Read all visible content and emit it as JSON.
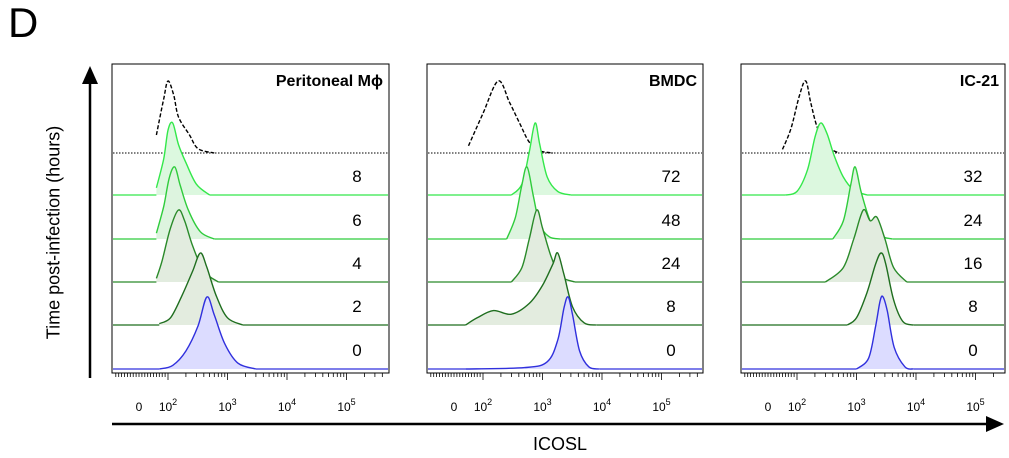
{
  "figure": {
    "panel_label": "D",
    "ylabel": "Time post-infection (hours)",
    "xlabel": "ICOSL"
  },
  "chart_data": [
    {
      "type": "area",
      "title": "Peritoneal Mϕ",
      "xscale": "biexponential",
      "xticks": [
        "0",
        "10^2",
        "10^3",
        "10^4",
        "10^5"
      ],
      "ridges": [
        {
          "time": "",
          "style": "isotype-control",
          "color": "#000000",
          "peak": 100,
          "points": [
            [
              60,
              0.25
            ],
            [
              85,
              0.75
            ],
            [
              100,
              1.0
            ],
            [
              125,
              0.8
            ],
            [
              150,
              0.5
            ],
            [
              230,
              0.25
            ],
            [
              320,
              0.06
            ],
            [
              600,
              0.0
            ]
          ]
        },
        {
          "time": "8",
          "color": "#33e84a",
          "fill": "#dcf8df",
          "peak": 130,
          "points": [
            [
              60,
              0.1
            ],
            [
              85,
              0.5
            ],
            [
              100,
              0.9
            ],
            [
              120,
              1.0
            ],
            [
              150,
              0.7
            ],
            [
              200,
              0.45
            ],
            [
              300,
              0.15
            ],
            [
              500,
              0.0
            ]
          ]
        },
        {
          "time": "6",
          "color": "#2fcc3c",
          "fill": "#ddf4df",
          "peak": 130,
          "points": [
            [
              60,
              0.08
            ],
            [
              85,
              0.45
            ],
            [
              105,
              0.85
            ],
            [
              130,
              1.0
            ],
            [
              160,
              0.75
            ],
            [
              220,
              0.4
            ],
            [
              350,
              0.1
            ],
            [
              600,
              0.0
            ]
          ]
        },
        {
          "time": "4",
          "color": "#2a8a2a",
          "fill": "#e2ecdf",
          "peak": 150,
          "points": [
            [
              60,
              0.05
            ],
            [
              80,
              0.3
            ],
            [
              110,
              0.75
            ],
            [
              150,
              1.0
            ],
            [
              190,
              0.85
            ],
            [
              260,
              0.5
            ],
            [
              400,
              0.15
            ],
            [
              700,
              0.0
            ]
          ]
        },
        {
          "time": "2",
          "color": "#1f6e1f",
          "fill": "#e3ecdf",
          "peak": 350,
          "points": [
            [
              70,
              0.02
            ],
            [
              110,
              0.1
            ],
            [
              170,
              0.4
            ],
            [
              260,
              0.75
            ],
            [
              350,
              1.0
            ],
            [
              450,
              0.8
            ],
            [
              650,
              0.4
            ],
            [
              1000,
              0.1
            ],
            [
              1800,
              0.0
            ]
          ]
        },
        {
          "time": "0",
          "color": "#3030dd",
          "fill": "#dcdcff",
          "peak": 450,
          "points": [
            [
              70,
              0.0
            ],
            [
              120,
              0.05
            ],
            [
              200,
              0.25
            ],
            [
              320,
              0.6
            ],
            [
              450,
              1.0
            ],
            [
              600,
              0.75
            ],
            [
              900,
              0.35
            ],
            [
              1500,
              0.08
            ],
            [
              3000,
              0.0
            ]
          ]
        }
      ]
    },
    {
      "type": "area",
      "title": "BMDC",
      "xscale": "biexponential",
      "xticks": [
        "0",
        "10^2",
        "10^3",
        "10^4",
        "10^5"
      ],
      "ridges": [
        {
          "time": "",
          "style": "isotype-control",
          "color": "#000000",
          "peak": 180,
          "points": [
            [
              50,
              0.1
            ],
            [
              100,
              0.55
            ],
            [
              180,
              1.0
            ],
            [
              280,
              0.7
            ],
            [
              420,
              0.4
            ],
            [
              600,
              0.15
            ],
            [
              900,
              0.03
            ],
            [
              1500,
              0.0
            ]
          ]
        },
        {
          "time": "72",
          "color": "#33e84a",
          "fill": "#dcf8df",
          "peak": 750,
          "points": [
            [
              300,
              0.0
            ],
            [
              450,
              0.15
            ],
            [
              600,
              0.6
            ],
            [
              750,
              1.0
            ],
            [
              900,
              0.7
            ],
            [
              1200,
              0.25
            ],
            [
              1800,
              0.05
            ],
            [
              3000,
              0.0
            ]
          ]
        },
        {
          "time": "48",
          "color": "#2fcc3c",
          "fill": "#ddf4df",
          "peak": 500,
          "points": [
            [
              250,
              0.0
            ],
            [
              350,
              0.3
            ],
            [
              450,
              0.75
            ],
            [
              550,
              1.0
            ],
            [
              700,
              0.6
            ],
            [
              900,
              0.2
            ],
            [
              1300,
              0.03
            ],
            [
              2000,
              0.0
            ]
          ]
        },
        {
          "time": "24",
          "color": "#2a8a2a",
          "fill": "#e2ecdf",
          "peak": 800,
          "points": [
            [
              300,
              0.0
            ],
            [
              450,
              0.2
            ],
            [
              600,
              0.6
            ],
            [
              800,
              1.0
            ],
            [
              1000,
              0.75
            ],
            [
              1400,
              0.35
            ],
            [
              2000,
              0.08
            ],
            [
              3500,
              0.0
            ]
          ]
        },
        {
          "time": "8",
          "color": "#1f6e1f",
          "fill": "#e3ecdf",
          "peak": 1800,
          "points": [
            [
              40,
              0.0
            ],
            [
              80,
              0.1
            ],
            [
              150,
              0.2
            ],
            [
              300,
              0.15
            ],
            [
              600,
              0.3
            ],
            [
              1000,
              0.55
            ],
            [
              1500,
              0.85
            ],
            [
              1800,
              1.0
            ],
            [
              2300,
              0.7
            ],
            [
              3200,
              0.25
            ],
            [
              5000,
              0.03
            ],
            [
              8000,
              0.0
            ]
          ]
        },
        {
          "time": "0",
          "color": "#3030dd",
          "fill": "#dcdcff",
          "peak": 2700,
          "points": [
            [
              40,
              0.0
            ],
            [
              500,
              0.02
            ],
            [
              1200,
              0.1
            ],
            [
              1800,
              0.4
            ],
            [
              2300,
              0.85
            ],
            [
              2700,
              1.0
            ],
            [
              3200,
              0.75
            ],
            [
              4200,
              0.25
            ],
            [
              6000,
              0.03
            ],
            [
              9000,
              0.0
            ]
          ]
        }
      ]
    },
    {
      "type": "area",
      "title": "IC-21",
      "xscale": "biexponential",
      "xticks": [
        "0",
        "10^2",
        "10^3",
        "10^4",
        "10^5"
      ],
      "ridges": [
        {
          "time": "",
          "style": "isotype-control",
          "color": "#000000",
          "peak": 140,
          "points": [
            [
              50,
              0.05
            ],
            [
              80,
              0.35
            ],
            [
              110,
              0.8
            ],
            [
              140,
              1.0
            ],
            [
              170,
              0.7
            ],
            [
              220,
              0.35
            ],
            [
              320,
              0.1
            ],
            [
              500,
              0.0
            ]
          ]
        },
        {
          "time": "32",
          "color": "#33e84a",
          "fill": "#dcf8df",
          "peak": 250,
          "points": [
            [
              60,
              0.0
            ],
            [
              100,
              0.05
            ],
            [
              150,
              0.35
            ],
            [
              200,
              0.8
            ],
            [
              250,
              1.0
            ],
            [
              320,
              0.85
            ],
            [
              420,
              0.55
            ],
            [
              600,
              0.25
            ],
            [
              900,
              0.07
            ],
            [
              1500,
              0.0
            ]
          ]
        },
        {
          "time": "24",
          "color": "#2fcc3c",
          "fill": "#ddf4df",
          "peak": 950,
          "points": [
            [
              400,
              0.0
            ],
            [
              600,
              0.25
            ],
            [
              800,
              0.75
            ],
            [
              950,
              1.0
            ],
            [
              1200,
              0.65
            ],
            [
              1700,
              0.25
            ],
            [
              2500,
              0.05
            ],
            [
              4000,
              0.0
            ]
          ]
        },
        {
          "time": "16",
          "color": "#2a8a2a",
          "fill": "#e2ecdf",
          "peak": 1300,
          "points": [
            [
              300,
              0.0
            ],
            [
              600,
              0.2
            ],
            [
              900,
              0.6
            ],
            [
              1300,
              1.0
            ],
            [
              1700,
              0.85
            ],
            [
              2200,
              0.9
            ],
            [
              3000,
              0.6
            ],
            [
              4200,
              0.2
            ],
            [
              7000,
              0.0
            ]
          ]
        },
        {
          "time": "8",
          "color": "#1f6e1f",
          "fill": "#e3ecdf",
          "peak": 2600,
          "points": [
            [
              700,
              0.0
            ],
            [
              1000,
              0.1
            ],
            [
              1500,
              0.45
            ],
            [
              2100,
              0.85
            ],
            [
              2600,
              1.0
            ],
            [
              3100,
              0.85
            ],
            [
              4200,
              0.35
            ],
            [
              6000,
              0.05
            ],
            [
              9000,
              0.0
            ]
          ]
        },
        {
          "time": "0",
          "color": "#3030dd",
          "fill": "#dcdcff",
          "peak": 2800,
          "points": [
            [
              1000,
              0.0
            ],
            [
              1600,
              0.15
            ],
            [
              2100,
              0.6
            ],
            [
              2500,
              0.95
            ],
            [
              2800,
              1.0
            ],
            [
              3300,
              0.8
            ],
            [
              4300,
              0.3
            ],
            [
              6500,
              0.03
            ],
            [
              9000,
              0.0
            ]
          ]
        }
      ]
    }
  ]
}
